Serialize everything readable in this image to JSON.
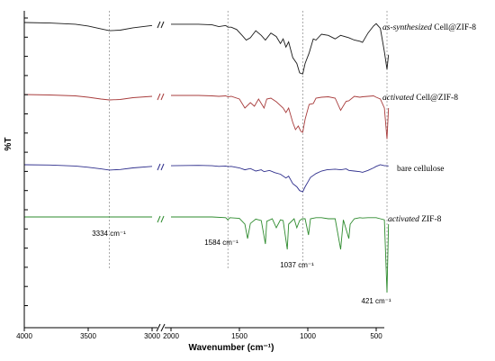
{
  "chart_data": {
    "type": "line",
    "title": "",
    "xlabel": "Wavenumber (cm⁻¹)",
    "ylabel": "%T",
    "x_reversed": true,
    "x_break": [
      3000,
      2000
    ],
    "x_ticks": [
      4000,
      3500,
      3000,
      2000,
      1500,
      1000,
      500
    ],
    "grid": false,
    "y_ticks_labeled": false,
    "series": [
      {
        "name_prefix": "as-synthesized",
        "name_suffix": "Cell@ZIF-8",
        "name": "as-synthesized Cell@ZIF-8",
        "color": "#1a1a1a",
        "baseline": 0.955,
        "points": [
          [
            4000,
            0.0
          ],
          [
            3800,
            0.01
          ],
          [
            3600,
            0.03
          ],
          [
            3500,
            0.06
          ],
          [
            3400,
            0.11
          ],
          [
            3334,
            0.14
          ],
          [
            3250,
            0.13
          ],
          [
            3150,
            0.09
          ],
          [
            3000,
            0.05
          ],
          [
            2000,
            0.03
          ],
          [
            1800,
            0.03
          ],
          [
            1700,
            0.04
          ],
          [
            1650,
            0.07
          ],
          [
            1600,
            0.05
          ],
          [
            1584,
            0.08
          ],
          [
            1560,
            0.08
          ],
          [
            1520,
            0.12
          ],
          [
            1480,
            0.22
          ],
          [
            1450,
            0.3
          ],
          [
            1420,
            0.26
          ],
          [
            1380,
            0.14
          ],
          [
            1340,
            0.22
          ],
          [
            1310,
            0.3
          ],
          [
            1270,
            0.18
          ],
          [
            1230,
            0.24
          ],
          [
            1200,
            0.36
          ],
          [
            1180,
            0.28
          ],
          [
            1160,
            0.42
          ],
          [
            1140,
            0.33
          ],
          [
            1110,
            0.6
          ],
          [
            1080,
            0.7
          ],
          [
            1060,
            0.86
          ],
          [
            1037,
            0.88
          ],
          [
            1020,
            0.7
          ],
          [
            990,
            0.52
          ],
          [
            960,
            0.28
          ],
          [
            940,
            0.3
          ],
          [
            900,
            0.2
          ],
          [
            850,
            0.22
          ],
          [
            800,
            0.28
          ],
          [
            760,
            0.22
          ],
          [
            700,
            0.26
          ],
          [
            660,
            0.3
          ],
          [
            620,
            0.32
          ],
          [
            600,
            0.34
          ],
          [
            560,
            0.18
          ],
          [
            520,
            0.06
          ],
          [
            500,
            0.02
          ],
          [
            470,
            0.1
          ],
          [
            440,
            0.5
          ],
          [
            421,
            0.8
          ],
          [
            410,
            0.55
          ]
        ]
      },
      {
        "name_prefix": "activated",
        "name_suffix": "Cell@ZIF-8",
        "name": "activated Cell@ZIF-8",
        "color": "#a83c3c",
        "baseline": 0.955,
        "points": [
          [
            4000,
            0.0
          ],
          [
            3800,
            0.01
          ],
          [
            3600,
            0.03
          ],
          [
            3500,
            0.06
          ],
          [
            3400,
            0.1
          ],
          [
            3334,
            0.12
          ],
          [
            3250,
            0.11
          ],
          [
            3150,
            0.07
          ],
          [
            3000,
            0.04
          ],
          [
            2000,
            0.02
          ],
          [
            1800,
            0.02
          ],
          [
            1700,
            0.03
          ],
          [
            1650,
            0.04
          ],
          [
            1600,
            0.03
          ],
          [
            1584,
            0.05
          ],
          [
            1560,
            0.04
          ],
          [
            1500,
            0.1
          ],
          [
            1460,
            0.3
          ],
          [
            1420,
            0.18
          ],
          [
            1390,
            0.26
          ],
          [
            1360,
            0.1
          ],
          [
            1320,
            0.3
          ],
          [
            1300,
            0.1
          ],
          [
            1270,
            0.08
          ],
          [
            1230,
            0.16
          ],
          [
            1180,
            0.3
          ],
          [
            1160,
            0.4
          ],
          [
            1140,
            0.3
          ],
          [
            1110,
            0.62
          ],
          [
            1090,
            0.78
          ],
          [
            1070,
            0.7
          ],
          [
            1050,
            0.82
          ],
          [
            1037,
            0.84
          ],
          [
            1020,
            0.55
          ],
          [
            990,
            0.22
          ],
          [
            960,
            0.2
          ],
          [
            940,
            0.08
          ],
          [
            900,
            0.06
          ],
          [
            850,
            0.05
          ],
          [
            800,
            0.08
          ],
          [
            760,
            0.35
          ],
          [
            720,
            0.15
          ],
          [
            700,
            0.14
          ],
          [
            660,
            0.04
          ],
          [
            620,
            0.06
          ],
          [
            600,
            0.05
          ],
          [
            560,
            0.04
          ],
          [
            520,
            0.03
          ],
          [
            500,
            0.06
          ],
          [
            470,
            0.1
          ],
          [
            440,
            0.3
          ],
          [
            421,
            0.99
          ],
          [
            410,
            0.3
          ]
        ]
      },
      {
        "name_prefix": "",
        "name_suffix": "bare cellulose",
        "name": "bare cellulose",
        "color": "#2e2e8c",
        "baseline": 0.955,
        "points": [
          [
            4000,
            0.0
          ],
          [
            3800,
            0.01
          ],
          [
            3600,
            0.04
          ],
          [
            3500,
            0.08
          ],
          [
            3400,
            0.13
          ],
          [
            3334,
            0.17
          ],
          [
            3250,
            0.15
          ],
          [
            3150,
            0.1
          ],
          [
            3000,
            0.05
          ],
          [
            2000,
            0.03
          ],
          [
            1800,
            0.02
          ],
          [
            1700,
            0.03
          ],
          [
            1650,
            0.05
          ],
          [
            1600,
            0.04
          ],
          [
            1584,
            0.06
          ],
          [
            1560,
            0.05
          ],
          [
            1500,
            0.1
          ],
          [
            1460,
            0.16
          ],
          [
            1420,
            0.12
          ],
          [
            1380,
            0.2
          ],
          [
            1340,
            0.16
          ],
          [
            1320,
            0.22
          ],
          [
            1280,
            0.18
          ],
          [
            1240,
            0.25
          ],
          [
            1200,
            0.3
          ],
          [
            1160,
            0.42
          ],
          [
            1140,
            0.36
          ],
          [
            1110,
            0.6
          ],
          [
            1080,
            0.7
          ],
          [
            1060,
            0.82
          ],
          [
            1037,
            0.86
          ],
          [
            1020,
            0.7
          ],
          [
            1000,
            0.55
          ],
          [
            980,
            0.4
          ],
          [
            940,
            0.28
          ],
          [
            900,
            0.2
          ],
          [
            860,
            0.16
          ],
          [
            800,
            0.14
          ],
          [
            760,
            0.16
          ],
          [
            720,
            0.13
          ],
          [
            700,
            0.18
          ],
          [
            660,
            0.2
          ],
          [
            620,
            0.22
          ],
          [
            600,
            0.24
          ],
          [
            560,
            0.18
          ],
          [
            520,
            0.1
          ],
          [
            500,
            0.05
          ],
          [
            470,
            0.0
          ],
          [
            440,
            0.03
          ],
          [
            420,
            0.03
          ],
          [
            410,
            0.04
          ]
        ]
      },
      {
        "name_prefix": "activated",
        "name_suffix": "ZIF-8",
        "name": "activated ZIF-8",
        "color": "#2e8b2e",
        "baseline": 0.955,
        "points": [
          [
            4000,
            0.0
          ],
          [
            3500,
            0.0
          ],
          [
            3000,
            0.0
          ],
          [
            2000,
            0.0
          ],
          [
            1700,
            0.0
          ],
          [
            1600,
            0.02
          ],
          [
            1584,
            0.08
          ],
          [
            1570,
            0.02
          ],
          [
            1500,
            0.04
          ],
          [
            1460,
            0.2
          ],
          [
            1440,
            0.6
          ],
          [
            1420,
            0.18
          ],
          [
            1380,
            0.06
          ],
          [
            1340,
            0.1
          ],
          [
            1310,
            0.75
          ],
          [
            1300,
            0.12
          ],
          [
            1260,
            0.05
          ],
          [
            1230,
            0.3
          ],
          [
            1200,
            0.08
          ],
          [
            1180,
            0.1
          ],
          [
            1150,
            0.9
          ],
          [
            1140,
            0.2
          ],
          [
            1100,
            0.05
          ],
          [
            1080,
            0.3
          ],
          [
            1060,
            0.1
          ],
          [
            1040,
            0.05
          ],
          [
            1020,
            0.05
          ],
          [
            995,
            0.5
          ],
          [
            980,
            0.05
          ],
          [
            940,
            0.02
          ],
          [
            900,
            0.02
          ],
          [
            850,
            0.05
          ],
          [
            800,
            0.05
          ],
          [
            760,
            0.9
          ],
          [
            740,
            0.08
          ],
          [
            700,
            0.6
          ],
          [
            690,
            0.2
          ],
          [
            660,
            0.05
          ],
          [
            620,
            0.02
          ],
          [
            600,
            0.03
          ],
          [
            560,
            0.02
          ],
          [
            520,
            0.02
          ],
          [
            500,
            0.02
          ],
          [
            470,
            0.05
          ],
          [
            440,
            0.08
          ],
          [
            421,
            2.1
          ],
          [
            410,
            0.2
          ]
        ]
      }
    ],
    "peak_annotations": [
      {
        "wavenumber": 3334,
        "label": "3334 cm⁻¹"
      },
      {
        "wavenumber": 1584,
        "label": "1584 cm⁻¹"
      },
      {
        "wavenumber": 1037,
        "label": "1037 cm⁻¹"
      },
      {
        "wavenumber": 421,
        "label": "421 cm⁻¹"
      }
    ]
  }
}
